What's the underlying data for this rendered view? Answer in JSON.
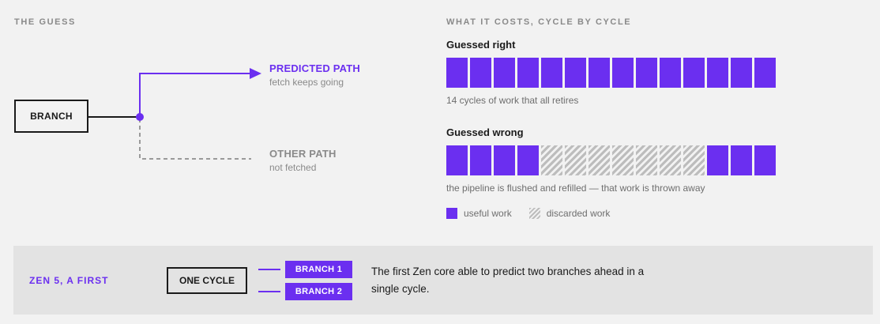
{
  "left": {
    "section_label": "THE GUESS",
    "branch_label": "BRANCH",
    "predicted_title": "PREDICTED PATH",
    "predicted_sub": "fetch keeps going",
    "other_title": "OTHER PATH",
    "other_sub": "not fetched"
  },
  "right": {
    "section_label": "WHAT IT COSTS, CYCLE BY CYCLE",
    "guessed_right": {
      "title": "Guessed right",
      "cycles": [
        "useful",
        "useful",
        "useful",
        "useful",
        "useful",
        "useful",
        "useful",
        "useful",
        "useful",
        "useful",
        "useful",
        "useful",
        "useful",
        "useful"
      ],
      "caption": "14 cycles of work that all retires"
    },
    "guessed_wrong": {
      "title": "Guessed wrong",
      "cycles": [
        "useful",
        "useful",
        "useful",
        "useful",
        "discarded",
        "discarded",
        "discarded",
        "discarded",
        "discarded",
        "discarded",
        "discarded",
        "useful",
        "useful",
        "useful"
      ],
      "caption": "the pipeline is flushed and refilled — that work is thrown away"
    },
    "legend": {
      "useful": "useful work",
      "discarded": "discarded work"
    }
  },
  "bottom": {
    "label": "ZEN 5, A FIRST",
    "cycle_label": "ONE CYCLE",
    "branch1": "BRANCH 1",
    "branch2": "BRANCH 2",
    "description": "The first Zen core able to predict two branches ahead in a single cycle."
  },
  "colors": {
    "accent": "#6b2ff0",
    "muted": "#8a8a8a",
    "discarded": "#bdbdbd"
  }
}
